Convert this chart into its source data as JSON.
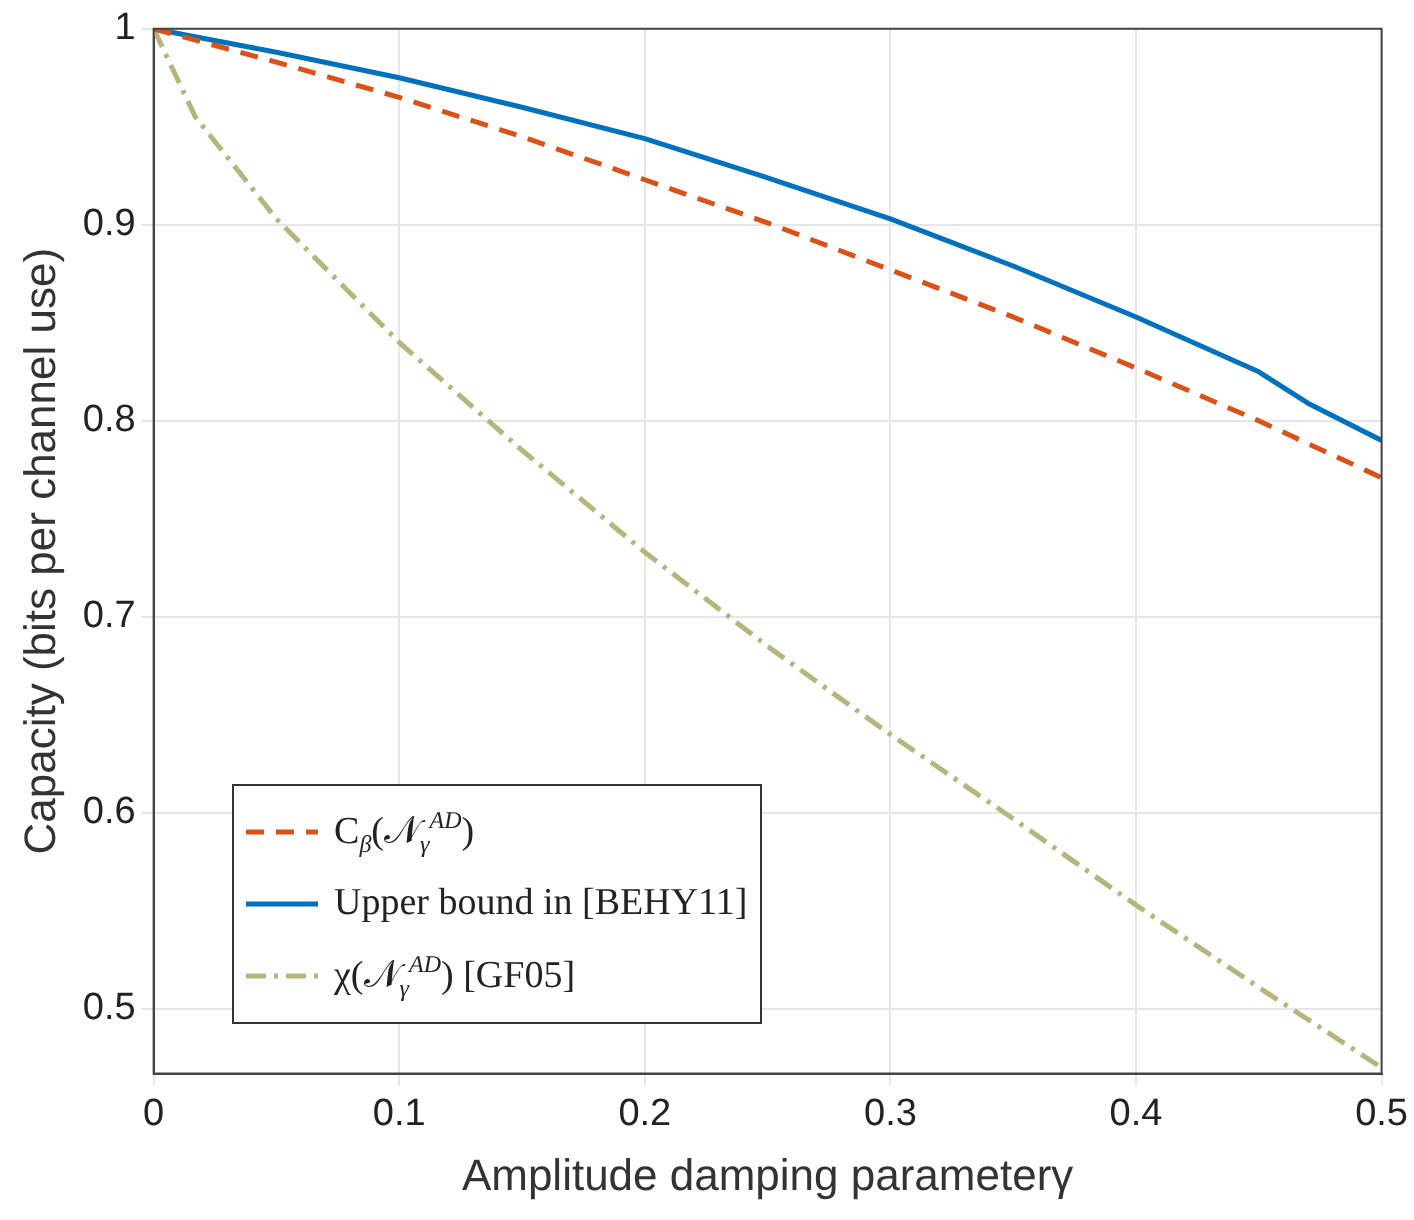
{
  "chart_data": {
    "type": "line",
    "xlabel": "Amplitude damping parameterγ",
    "ylabel": "Capacity (bits per channel use)",
    "xlim": [
      0,
      0.5
    ],
    "xticks": [
      0,
      0.1,
      0.2,
      0.3,
      0.4,
      0.5
    ],
    "ylim": [
      0.467,
      1
    ],
    "yticks": [
      0.5,
      0.6,
      0.7,
      0.8,
      0.9,
      1
    ],
    "grid": true,
    "legend": "bottom left",
    "marker": "none",
    "series": [
      {
        "name": "C$_{β}$(𝒩$_{γ}$$^{AD}$)",
        "color": "#d95319",
        "line_style": "dashed",
        "x": [
          0,
          0.05,
          0.1,
          0.15,
          0.2,
          0.25,
          0.3,
          0.35,
          0.4,
          0.45,
          0.5
        ],
        "values": [
          1,
          0.983,
          0.965,
          0.945,
          0.923,
          0.901,
          0.877,
          0.853,
          0.827,
          0.8,
          0.771
        ]
      },
      {
        "name": "Upper bound in [BEHY11]",
        "color": "#0072bd",
        "line_style": "solid",
        "x": [
          0,
          0.05,
          0.1,
          0.15,
          0.2,
          0.25,
          0.3,
          0.35,
          0.4,
          0.45,
          0.47,
          0.5
        ],
        "values": [
          1,
          0.988,
          0.975,
          0.96,
          0.944,
          0.924,
          0.903,
          0.879,
          0.853,
          0.825,
          0.809,
          0.79
        ]
      },
      {
        "name": "χ(𝒩$_{γ}$$^{AD}$) [GF05]",
        "color": "#b5b57d",
        "line_style": "dashdot",
        "x": [
          0,
          0.017,
          0.05,
          0.1,
          0.15,
          0.2,
          0.25,
          0.3,
          0.35,
          0.4,
          0.45,
          0.5
        ],
        "values": [
          1,
          0.955,
          0.903,
          0.84,
          0.785,
          0.733,
          0.685,
          0.64,
          0.597,
          0.553,
          0.511,
          0.47
        ]
      }
    ]
  }
}
